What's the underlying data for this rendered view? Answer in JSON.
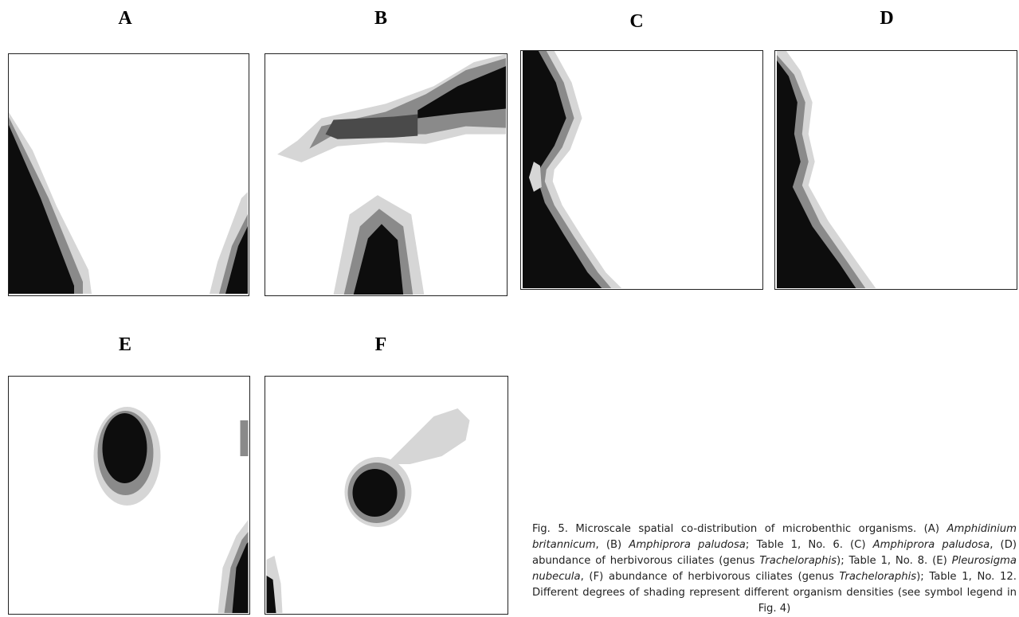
{
  "panels": [
    {
      "label": "A"
    },
    {
      "label": "B"
    },
    {
      "label": "C"
    },
    {
      "label": "D"
    },
    {
      "label": "E"
    },
    {
      "label": "F"
    }
  ],
  "caption": {
    "parts": [
      {
        "text": "Fig. 5. Microscale spatial co-distribution of microbenthic organisms. (A) ",
        "italic": false
      },
      {
        "text": "Amphidinium britannicum",
        "italic": true
      },
      {
        "text": ", (B) ",
        "italic": false
      },
      {
        "text": "Amphiprora paludosa",
        "italic": true
      },
      {
        "text": "; Table 1, No. 6. (C) ",
        "italic": false
      },
      {
        "text": "Amphiprora paludosa",
        "italic": true
      },
      {
        "text": ", (D) abundance of herbivorous ciliates (genus ",
        "italic": false
      },
      {
        "text": "Tracheloraphis",
        "italic": true
      },
      {
        "text": "); Table 1, No. 8. (E) ",
        "italic": false
      },
      {
        "text": "Pleurosigma nubecula",
        "italic": true
      },
      {
        "text": ", (F) abundance of herbivorous ciliates (genus ",
        "italic": false
      },
      {
        "text": "Tracheloraphis",
        "italic": true
      },
      {
        "text": "); Table 1, No. 12. Different degrees of shading represent different organism densities (see symbol legend in Fig. 4)",
        "italic": false
      }
    ]
  }
}
